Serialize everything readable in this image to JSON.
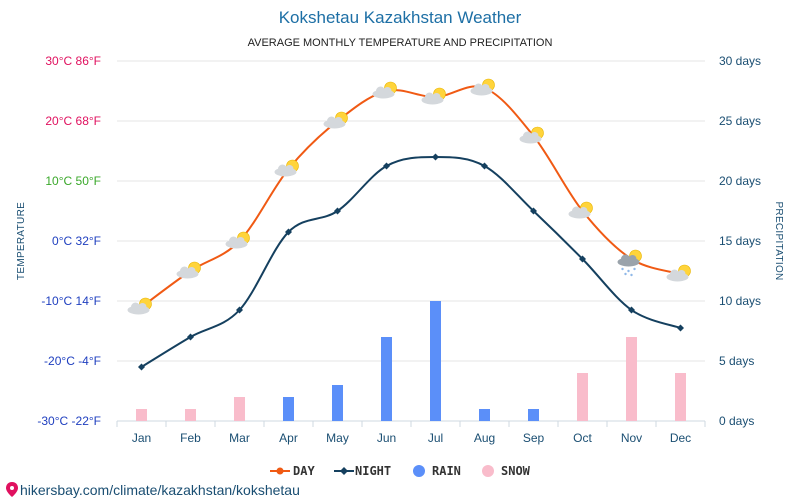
{
  "chart_data": {
    "type": "line",
    "title": "Kokshetau Kazakhstan Weather",
    "subtitle": "AVERAGE MONTHLY TEMPERATURE AND PRECIPITATION",
    "categories": [
      "Jan",
      "Feb",
      "Mar",
      "Apr",
      "May",
      "Jun",
      "Jul",
      "Aug",
      "Sep",
      "Oct",
      "Nov",
      "Dec"
    ],
    "left_axis": {
      "label": "TEMPERATURE",
      "ylim": [
        -30,
        30
      ],
      "ticks": [
        {
          "value": 30,
          "label": "30°C 86°F",
          "color": "#e0115f"
        },
        {
          "value": 20,
          "label": "20°C 68°F",
          "color": "#e0115f"
        },
        {
          "value": 10,
          "label": "10°C 50°F",
          "color": "#3aa82a"
        },
        {
          "value": 0,
          "label": "0°C 32°F",
          "color": "#1f3fbf"
        },
        {
          "value": -10,
          "label": "-10°C 14°F",
          "color": "#1f3fbf"
        },
        {
          "value": -20,
          "label": "-20°C -4°F",
          "color": "#1f3fbf"
        },
        {
          "value": -30,
          "label": "-30°C -22°F",
          "color": "#1f3fbf"
        }
      ]
    },
    "right_axis": {
      "label": "PRECIPITATION",
      "ylim": [
        0,
        30
      ],
      "ticks": [
        {
          "value": 30,
          "label": "30 days"
        },
        {
          "value": 25,
          "label": "25 days"
        },
        {
          "value": 20,
          "label": "20 days"
        },
        {
          "value": 15,
          "label": "15 days"
        },
        {
          "value": 10,
          "label": "10 days"
        },
        {
          "value": 5,
          "label": "5 days"
        },
        {
          "value": 0,
          "label": "0 days"
        }
      ]
    },
    "series": [
      {
        "name": "DAY",
        "type": "line",
        "axis": "left",
        "color": "#f05a14",
        "values": [
          -11,
          -5,
          0,
          12,
          20,
          25,
          24,
          25.5,
          17.5,
          5,
          -3,
          -5.5
        ]
      },
      {
        "name": "NIGHT",
        "type": "line",
        "axis": "left",
        "color": "#15405f",
        "values": [
          -21,
          -16,
          -11.5,
          1.5,
          5,
          12.5,
          14,
          12.5,
          5,
          -3,
          -11.5,
          -14.5
        ]
      },
      {
        "name": "RAIN",
        "type": "bar",
        "axis": "right",
        "color": "#5b8ff9",
        "values": [
          0,
          0,
          0,
          2,
          3,
          7,
          10,
          1,
          1,
          0,
          0,
          0
        ]
      },
      {
        "name": "SNOW",
        "type": "bar",
        "axis": "right",
        "color": "#f9bccb",
        "values": [
          1,
          1,
          2,
          0,
          0,
          0,
          0,
          0,
          0,
          4,
          7,
          4
        ]
      }
    ],
    "weather_icons": [
      "cloud-sun-icon",
      "cloud-sun-icon",
      "cloud-sun-icon",
      "cloud-sun-icon",
      "cloud-sun-icon",
      "cloud-sun-icon",
      "cloud-sun-icon",
      "cloud-sun-icon",
      "cloud-sun-icon",
      "cloud-sun-icon",
      "cloud-sun-snow-icon",
      "cloud-sun-icon"
    ],
    "grid": true,
    "legend_position": "bottom-center"
  },
  "source_text": "hikersbay.com/climate/kazakhstan/kokshetau"
}
